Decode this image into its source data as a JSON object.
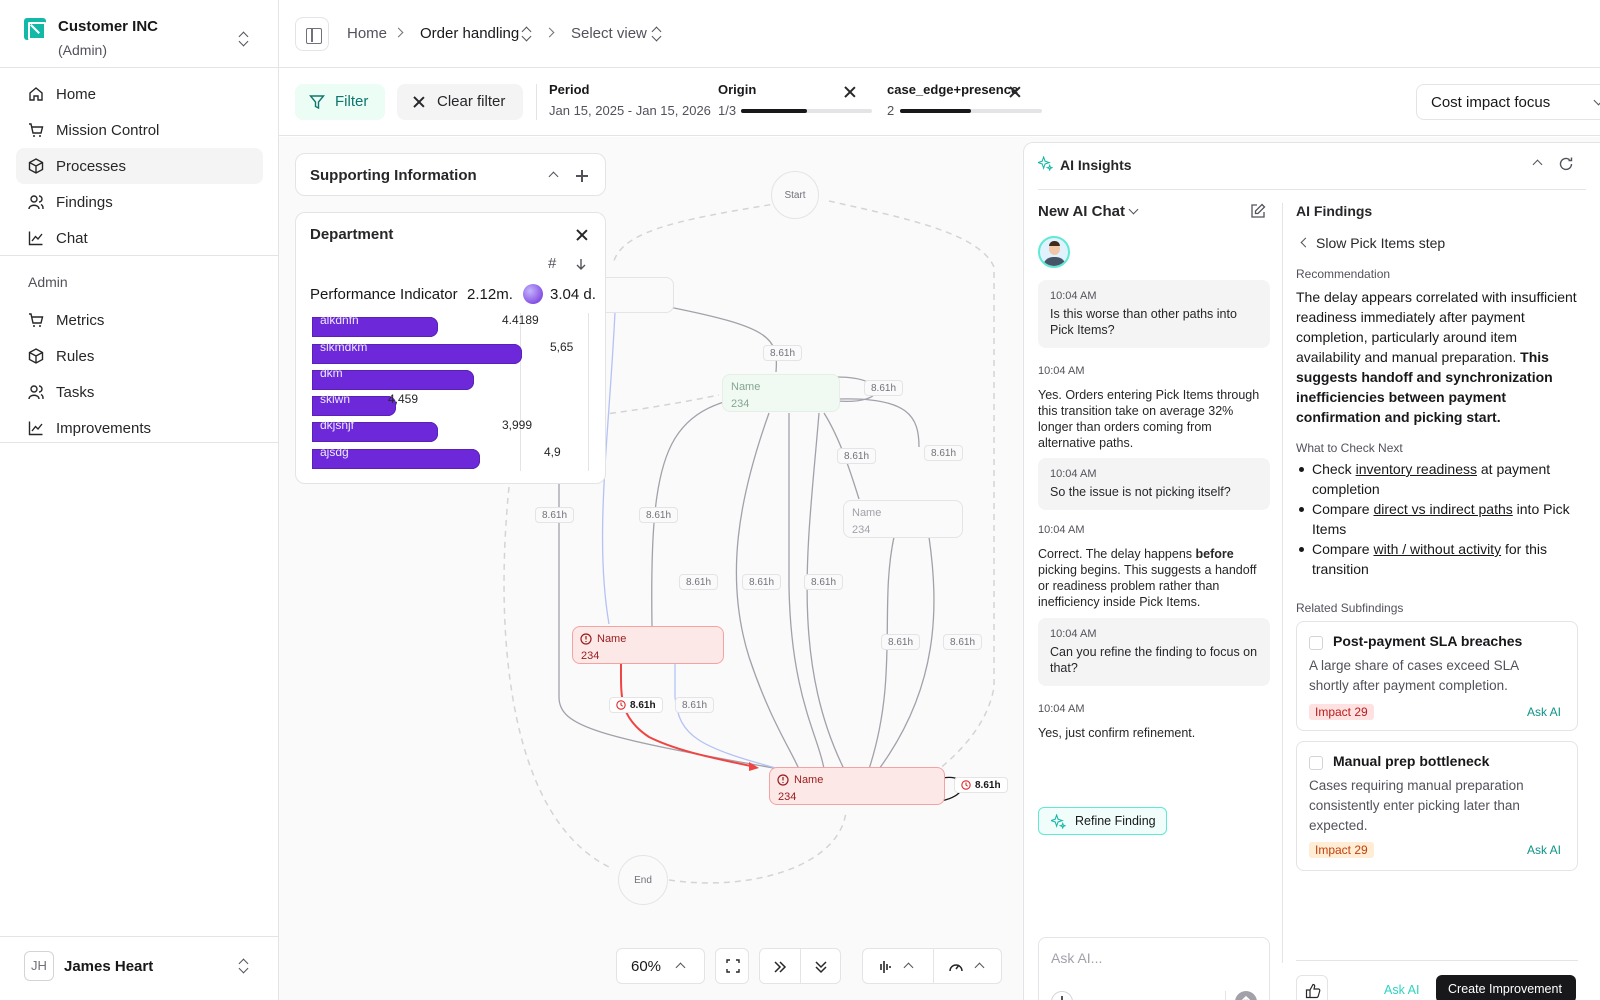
{
  "org": {
    "name": "Customer INC",
    "role": "(Admin)"
  },
  "nav": {
    "items": [
      {
        "label": "Home",
        "icon": "home-icon"
      },
      {
        "label": "Mission Control",
        "icon": "cart-icon"
      },
      {
        "label": "Processes",
        "icon": "box-icon",
        "active": true
      },
      {
        "label": "Findings",
        "icon": "users-icon"
      },
      {
        "label": "Chat",
        "icon": "chart-icon"
      }
    ],
    "admin_label": "Admin",
    "admin_items": [
      {
        "label": "Metrics",
        "icon": "cart-icon"
      },
      {
        "label": "Rules",
        "icon": "box-icon"
      },
      {
        "label": "Tasks",
        "icon": "users-icon"
      },
      {
        "label": "Improvements",
        "icon": "chart-icon"
      }
    ]
  },
  "user": {
    "initials": "JH",
    "name": "James Heart"
  },
  "breadcrumb": {
    "home": "Home",
    "section": "Order handling",
    "view": "Select view"
  },
  "filters": {
    "filter_label": "Filter",
    "clear_label": "Clear filter",
    "period": {
      "title": "Period",
      "value": "Jan 15, 2025 - Jan 15, 2026"
    },
    "origin": {
      "title": "Origin",
      "value": "1/3",
      "progress": 0.5
    },
    "case": {
      "title": "case_edge+presence",
      "value": "2",
      "progress": 0.5
    },
    "focus": "Cost impact focus"
  },
  "supporting": {
    "title": "Supporting Information"
  },
  "department": {
    "title": "Department",
    "indicator_label": "Performance Indicator",
    "indicator_value_1": "2.12m.",
    "indicator_value_2": "3.04 d.",
    "bars": [
      {
        "name": "alkdnfn",
        "value": "4.4189",
        "fraction": 0.6
      },
      {
        "name": "slkmdkm",
        "value": "5,65",
        "fraction": 1.0
      },
      {
        "name": "dkm",
        "value": "",
        "fraction": 0.77
      },
      {
        "name": "sklwn",
        "value": "4,459",
        "fraction": 0.4
      },
      {
        "name": "dkjsnjf",
        "value": "3,999",
        "fraction": 0.6
      },
      {
        "name": "ajsdg",
        "value": "4,9",
        "fraction": 0.8
      }
    ]
  },
  "flow": {
    "start": "Start",
    "end": "End",
    "edge_label": "8.61h",
    "nodes": [
      {
        "name": "Name",
        "value": "234"
      },
      {
        "name": "Name",
        "value": "234"
      },
      {
        "name": "Name",
        "value": "234"
      },
      {
        "name": "Name",
        "value": "234"
      }
    ]
  },
  "toolbar": {
    "zoom": "60%"
  },
  "ai": {
    "title": "AI Insights",
    "chat_title": "New AI Chat",
    "messages": [
      {
        "kind": "user",
        "time": "10:04 AM",
        "text": "Is this worse than other paths into Pick Items?"
      },
      {
        "kind": "ai",
        "time": "10:04 AM",
        "text": "Yes. Orders entering Pick Items through this transition take on average 32% longer than orders coming from alternative paths."
      },
      {
        "kind": "user",
        "time": "10:04 AM",
        "text": "So the issue is not picking itself?"
      },
      {
        "kind": "ai",
        "time": "10:04 AM",
        "text_a": "Correct. The delay happens ",
        "text_bold": "before",
        "text_b": " picking begins. This suggests a handoff or readiness problem rather than inefficiency inside Pick Items."
      },
      {
        "kind": "user",
        "time": "10:04 AM",
        "text": "Can you refine the finding to focus on that?"
      },
      {
        "kind": "ai",
        "time": "10:04 AM",
        "text": "Yes, just confirm refinement."
      }
    ],
    "refine_label": "Refine Finding",
    "ask_placeholder": "Ask AI...",
    "findings_title": "AI Findings",
    "finding_name": "Slow Pick Items step",
    "recommendation_label": "Recommendation",
    "recommendation_text": "The delay appears correlated with insufficient readiness immediately after payment completion, particularly around item availability and manual preparation.",
    "recommendation_bold": "This suggests handoff and synchronization inefficiencies between payment confirmation and picking start.",
    "check_label": "What to Check Next",
    "checks": [
      {
        "a": "Check ",
        "link": "inventory readiness",
        "b": " at payment completion"
      },
      {
        "a": "Compare ",
        "link": "direct vs indirect paths",
        "b": " into Pick Items"
      },
      {
        "a": "Compare ",
        "link": "with / without activity",
        "b": " for this transition"
      }
    ],
    "related_label": "Related Subfindings",
    "subfindings": [
      {
        "title": "Post-payment SLA breaches",
        "desc": "A large share of cases exceed SLA shortly after payment completion.",
        "impact": "Impact 29",
        "ask": "Ask AI"
      },
      {
        "title": "Manual prep bottleneck",
        "desc": "Cases requiring manual preparation consistently enter picking later than expected.",
        "impact": "Impact 29",
        "ask": "Ask AI"
      }
    ],
    "ask_ai_label": "Ask AI",
    "create_label": "Create Improvement"
  }
}
